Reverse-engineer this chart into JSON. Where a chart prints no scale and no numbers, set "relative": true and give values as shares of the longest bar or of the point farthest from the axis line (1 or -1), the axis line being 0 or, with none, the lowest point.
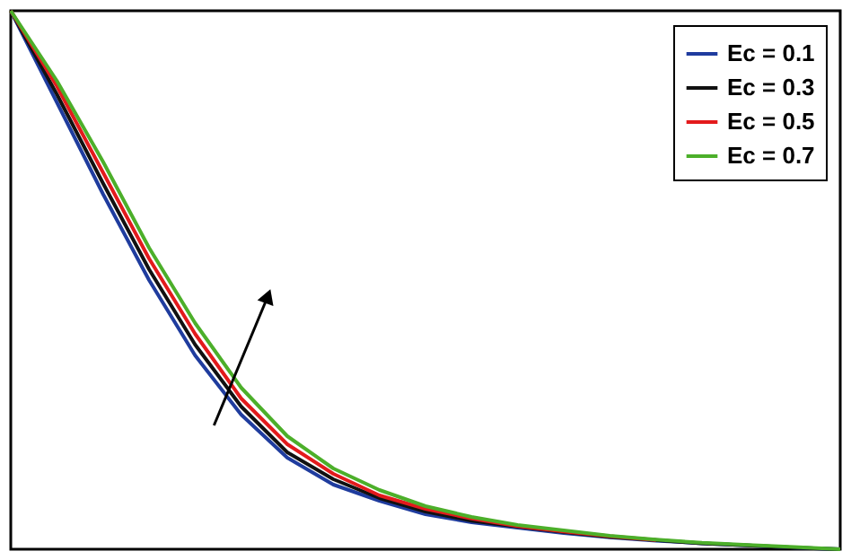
{
  "chart_data": {
    "type": "line",
    "relative": true,
    "legend": "top right",
    "marker": "none",
    "line_style": "solid",
    "categories": [
      null,
      null,
      null,
      null,
      null,
      null,
      null,
      null,
      null,
      null,
      null,
      null,
      null,
      null,
      null,
      null,
      null,
      null,
      null
    ],
    "series": [
      {
        "name": "Ec = 0.1",
        "color": "#1f3c9e",
        "values": [
          1,
          0.83,
          0.66,
          0.5,
          0.36,
          0.25,
          0.17,
          0.12,
          0.09,
          0.065,
          0.05,
          0.04,
          0.03,
          0.022,
          0.016,
          0.011,
          0.007,
          0.003,
          0
        ]
      },
      {
        "name": "Ec = 0.3",
        "color": "#111111",
        "values": [
          1,
          0.845,
          0.68,
          0.52,
          0.38,
          0.265,
          0.18,
          0.13,
          0.095,
          0.07,
          0.053,
          0.042,
          0.032,
          0.023,
          0.017,
          0.011,
          0.007,
          0.003,
          0
        ]
      },
      {
        "name": "Ec = 0.5",
        "color": "#e31a1c",
        "values": [
          1,
          0.86,
          0.7,
          0.54,
          0.4,
          0.28,
          0.195,
          0.14,
          0.1,
          0.075,
          0.057,
          0.043,
          0.033,
          0.024,
          0.017,
          null,
          null,
          null,
          null
        ]
      },
      {
        "name": "Ec = 0.7",
        "color": "#4caf2a",
        "values": [
          1,
          0.87,
          0.72,
          0.56,
          0.42,
          0.3,
          0.21,
          0.15,
          0.11,
          0.08,
          0.06,
          0.045,
          0.035,
          0.025,
          0.018,
          0.012,
          0.008,
          0.004,
          0
        ]
      }
    ]
  }
}
